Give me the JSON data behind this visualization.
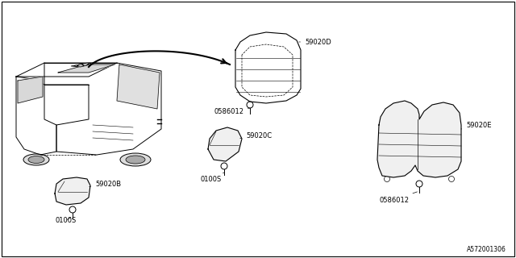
{
  "diagram_id": "A572001306",
  "bg_color": "#ffffff",
  "line_color": "#000000",
  "label_color": "#000000",
  "parts": {
    "59020B": {
      "label": "59020B",
      "bolt_label": "0100S"
    },
    "59020C": {
      "label": "59020C",
      "bolt_label": "0100S"
    },
    "59020D": {
      "label": "59020D",
      "bolt_label": "0586012"
    },
    "59020E": {
      "label": "59020E",
      "bolt_label": "0586012"
    }
  }
}
